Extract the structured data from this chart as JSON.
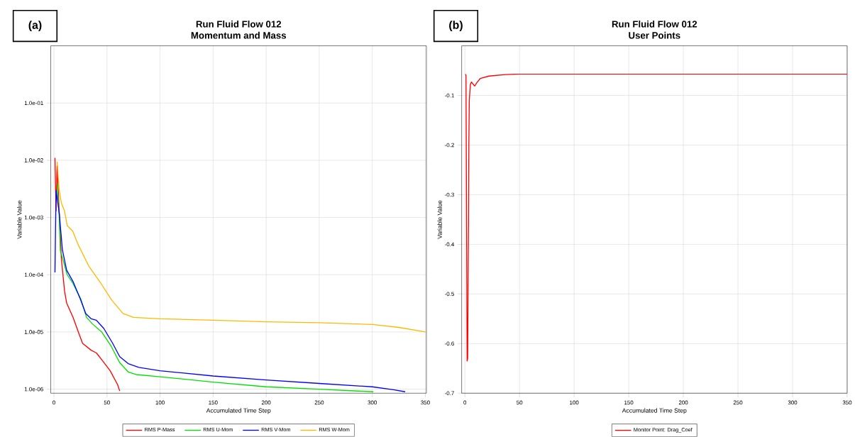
{
  "chart_data": [
    {
      "type": "line",
      "title": "Run Fluid Flow 012",
      "subtitle": "Momentum and Mass",
      "xlabel": "Accumulated Time Step",
      "ylabel": "Variable Value",
      "annotations": [
        "(a)"
      ],
      "log": "y",
      "grid": true,
      "legend": "bottom",
      "marker": "none",
      "line_style": "solid",
      "xlim": [
        -3,
        351
      ],
      "xticks": [
        0,
        50,
        100,
        150,
        200,
        250,
        300,
        350
      ],
      "ylim": [
        8.5e-07,
        1
      ],
      "yticks": [
        {
          "value": 0.1,
          "label": "1.0e-01"
        },
        {
          "value": 0.01,
          "label": "1.0e-02"
        },
        {
          "value": 0.001,
          "label": "1.0e-03"
        },
        {
          "value": 0.0001,
          "label": "1.0e-04"
        },
        {
          "value": 1e-05,
          "label": "1.0e-05"
        },
        {
          "value": 1e-06,
          "label": "1.0e-06"
        }
      ],
      "series": [
        {
          "name": "RMS P-Mass",
          "color": "#ff0000",
          "x": [
            1,
            2,
            3,
            7,
            10,
            12,
            18,
            23,
            27,
            35,
            40,
            46,
            53,
            60,
            62
          ],
          "values": [
            0.011,
            0.0013,
            0.008,
            0.00019,
            5.2e-05,
            3.2e-05,
            1.8e-05,
            1e-05,
            6.3e-06,
            4.8e-06,
            4.3e-06,
            3.1e-06,
            2.1e-06,
            1.2e-06,
            9.3e-07
          ]
        },
        {
          "name": "RMS U-Mom",
          "color": "#00e000",
          "x": [
            3,
            5,
            6,
            8.6,
            12.5,
            17.7,
            25.5,
            30.7,
            36,
            45,
            54,
            62,
            70,
            77.5,
            100,
            150,
            200,
            250,
            301
          ],
          "values": [
            0.004,
            0.001,
            0.00027,
            0.00018,
            0.0001,
            7.2e-05,
            3.7e-05,
            1.8e-05,
            1.4e-05,
            1e-05,
            5.6e-06,
            2.9e-06,
            2e-06,
            1.8e-06,
            1.65e-06,
            1.33e-06,
            1.1e-06,
            1e-06,
            9e-07
          ]
        },
        {
          "name": "RMS V-Mom",
          "color": "#0000ff",
          "x": [
            1,
            2,
            5,
            8,
            12,
            18,
            25,
            30,
            35,
            40,
            47,
            55,
            62,
            70,
            80,
            100,
            150,
            200,
            250,
            300,
            320,
            331
          ],
          "values": [
            0.00011,
            0.003,
            0.0012,
            0.00027,
            0.00012,
            7.6e-05,
            3.7e-05,
            2.1e-05,
            1.7e-05,
            1.6e-05,
            1.15e-05,
            6.5e-06,
            3.7e-06,
            2.8e-06,
            2.4e-06,
            2.1e-06,
            1.7e-06,
            1.45e-06,
            1.26e-06,
            1.1e-06,
            9.8e-07,
            9e-07
          ]
        },
        {
          "name": "RMS W-Mom",
          "color": "#ffb800",
          "x": [
            3,
            5,
            7,
            10,
            12.5,
            17.7,
            23,
            33,
            44,
            54,
            65,
            75,
            100,
            150,
            200,
            250,
            300,
            325,
            350
          ],
          "values": [
            0.0095,
            0.003,
            0.0018,
            0.0013,
            0.00072,
            0.00058,
            0.00033,
            0.00014,
            7.2e-05,
            3.7e-05,
            2.1e-05,
            1.8e-05,
            1.7e-05,
            1.6e-05,
            1.5e-05,
            1.45e-05,
            1.35e-05,
            1.2e-05,
            1e-05
          ]
        }
      ]
    },
    {
      "type": "line",
      "title": "Run Fluid Flow 012",
      "subtitle": "User Points",
      "xlabel": "Accumulated Time Step",
      "ylabel": "Variable Value",
      "annotations": [
        "(b)"
      ],
      "grid": true,
      "legend": "bottom",
      "marker": "none",
      "line_style": "solid",
      "xlim": [
        -3,
        350
      ],
      "xticks": [
        0,
        50,
        100,
        150,
        200,
        250,
        300,
        350
      ],
      "ylim": [
        -0.7,
        0
      ],
      "yticks": [
        -0.1,
        -0.2,
        -0.3,
        -0.4,
        -0.5,
        -0.6,
        -0.7
      ],
      "series": [
        {
          "name": "Monitor Point: Drag_Coef",
          "color": "#ff0000",
          "x": [
            0.5,
            1,
            1.5,
            2,
            2.5,
            3,
            3.3,
            3.6,
            4,
            5,
            6,
            7,
            9,
            11,
            14,
            22,
            37,
            50,
            350
          ],
          "values": [
            -0.057,
            -0.06,
            -0.35,
            -0.635,
            -0.63,
            -0.44,
            -0.36,
            -0.2,
            -0.11,
            -0.078,
            -0.073,
            -0.076,
            -0.081,
            -0.074,
            -0.066,
            -0.061,
            -0.058,
            -0.057,
            -0.057
          ]
        }
      ]
    }
  ]
}
